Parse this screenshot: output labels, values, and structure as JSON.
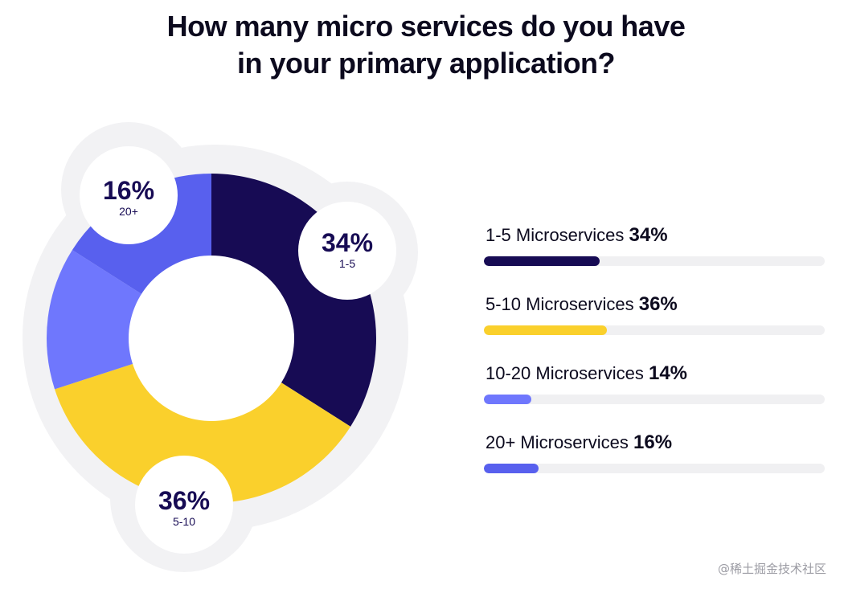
{
  "title_lines": [
    "How many micro services do you have",
    "in your primary application?"
  ],
  "chart_data": {
    "type": "pie",
    "title": "How many micro services do you have in your primary application?",
    "categories": [
      "1-5",
      "5-10",
      "10-20",
      "20+"
    ],
    "values": [
      34,
      36,
      14,
      16
    ],
    "unit": "%",
    "colors": [
      "#170b54",
      "#fad02c",
      "#6f77fd",
      "#5860ee"
    ],
    "callouts": [
      {
        "value": "34%",
        "label": "1-5"
      },
      {
        "value": "36%",
        "label": "5-10"
      },
      {
        "value": "16%",
        "label": "20+"
      }
    ],
    "legend": [
      {
        "label": "1-5 Microservices",
        "value": "34%",
        "pct": 34,
        "color": "#170b54"
      },
      {
        "label": "5-10 Microservices",
        "value": "36%",
        "pct": 36,
        "color": "#fad02c"
      },
      {
        "label": "10-20 Microservices",
        "value": "14%",
        "pct": 14,
        "color": "#6f77fd"
      },
      {
        "label": "20+ Microservices",
        "value": "16%",
        "pct": 16,
        "color": "#5860ee"
      }
    ]
  },
  "watermark": "@稀土掘金技术社区"
}
